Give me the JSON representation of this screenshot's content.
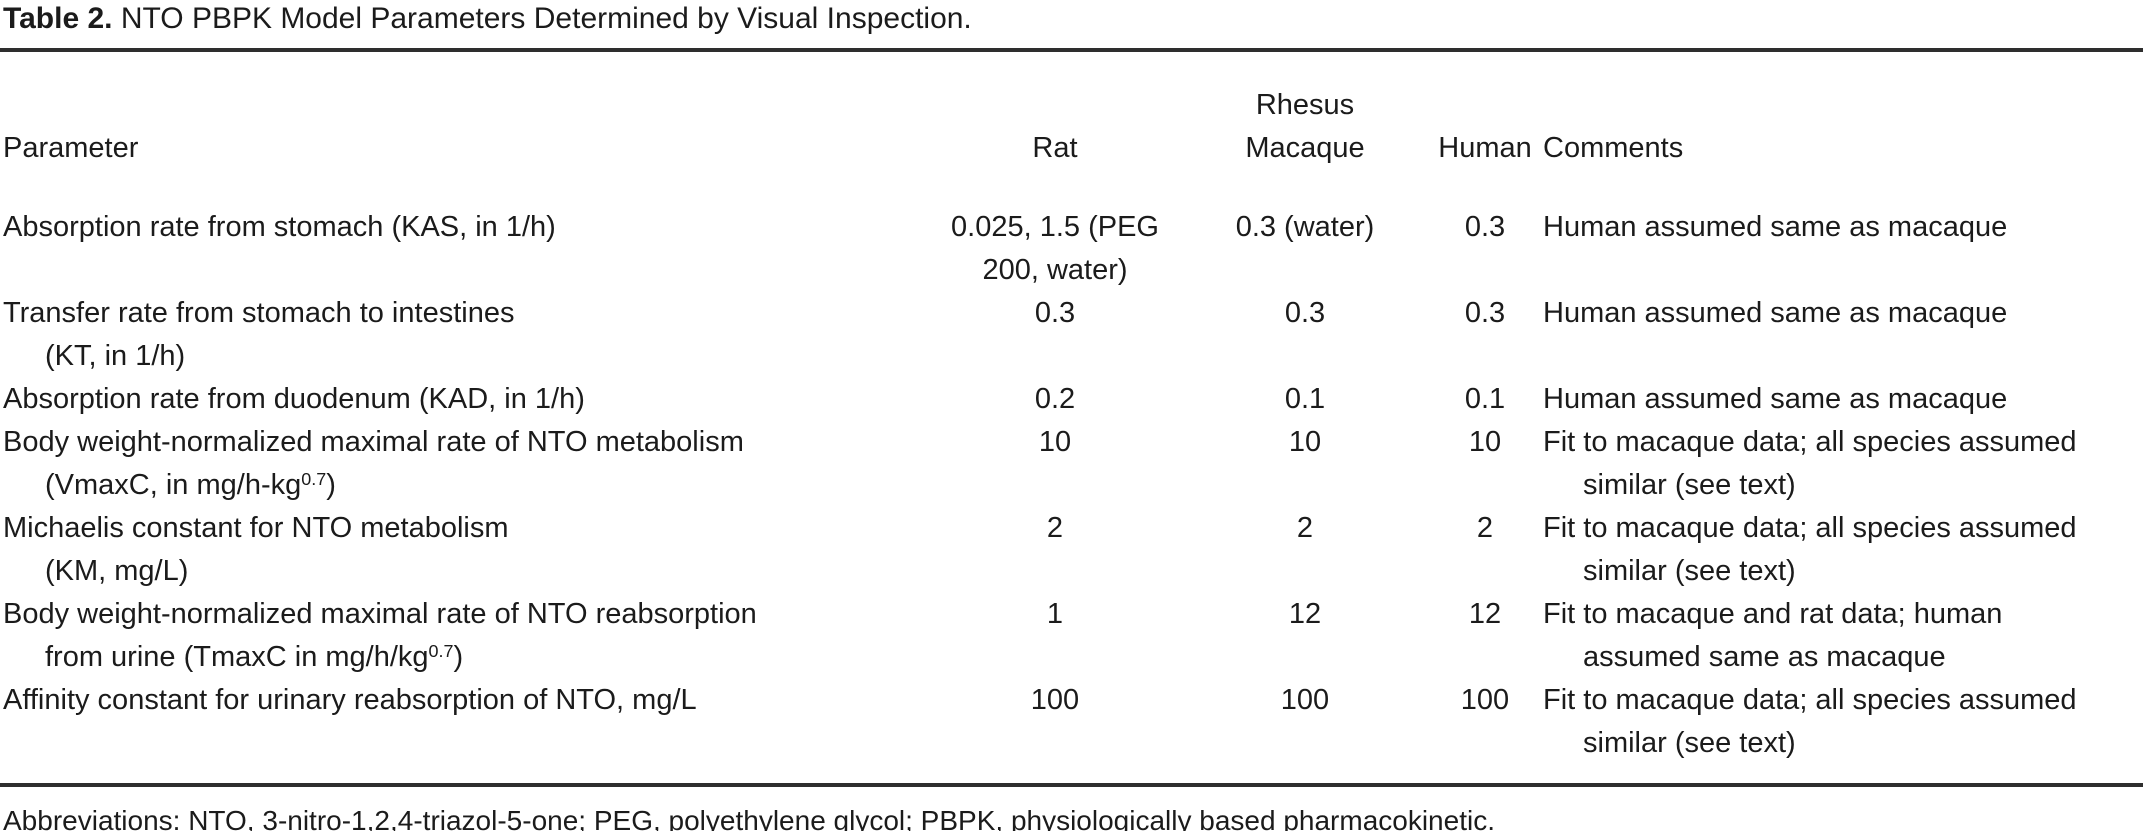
{
  "title": {
    "label": "Table 2.",
    "text": "NTO PBPK Model Parameters Determined by Visual Inspection."
  },
  "table": {
    "columns": [
      {
        "key": "parameter",
        "label": "Parameter"
      },
      {
        "key": "rat",
        "label": "Rat"
      },
      {
        "key": "macaque",
        "label": "Rhesus\nMacaque"
      },
      {
        "key": "human",
        "label": "Human"
      },
      {
        "key": "comments",
        "label": "Comments"
      }
    ],
    "rows": [
      {
        "parameter": "Absorption rate from stomach (KAS, in 1/h)",
        "rat": "0.025, 1.5 (PEG\n200, water)",
        "macaque": "0.3 (water)",
        "human": "0.3",
        "comments": "Human assumed same as macaque"
      },
      {
        "parameter": "Transfer rate from stomach to intestines\n(KT, in 1/h)",
        "rat": "0.3",
        "macaque": "0.3",
        "human": "0.3",
        "comments": "Human assumed same as macaque"
      },
      {
        "parameter": "Absorption rate from duodenum (KAD, in 1/h)",
        "rat": "0.2",
        "macaque": "0.1",
        "human": "0.1",
        "comments": "Human assumed same as macaque"
      },
      {
        "parameter": "Body weight-normalized maximal rate of NTO metabolism\n(VmaxC, in mg/h-kg^{0.7})",
        "rat": "10",
        "macaque": "10",
        "human": "10",
        "comments": "Fit to macaque data; all species assumed\nsimilar (see text)"
      },
      {
        "parameter": "Michaelis constant for NTO metabolism\n(KM, mg/L)",
        "rat": "2",
        "macaque": "2",
        "human": "2",
        "comments": "Fit to macaque data; all species assumed\nsimilar (see text)"
      },
      {
        "parameter": "Body weight-normalized maximal rate of NTO reabsorption\nfrom urine (TmaxC in mg/h/kg^{0.7})",
        "rat": "1",
        "macaque": "12",
        "human": "12",
        "comments": "Fit to macaque and rat data; human\nassumed same as macaque"
      },
      {
        "parameter": "Affinity constant for urinary reabsorption of NTO, mg/L",
        "rat": "100",
        "macaque": "100",
        "human": "100",
        "comments": "Fit to macaque data; all species assumed\nsimilar (see text)"
      }
    ]
  },
  "footnote": "Abbreviations: NTO, 3-nitro-1,2,4-triazol-5-one; PEG, polyethylene glycol; PBPK, physiologically based pharmacokinetic."
}
